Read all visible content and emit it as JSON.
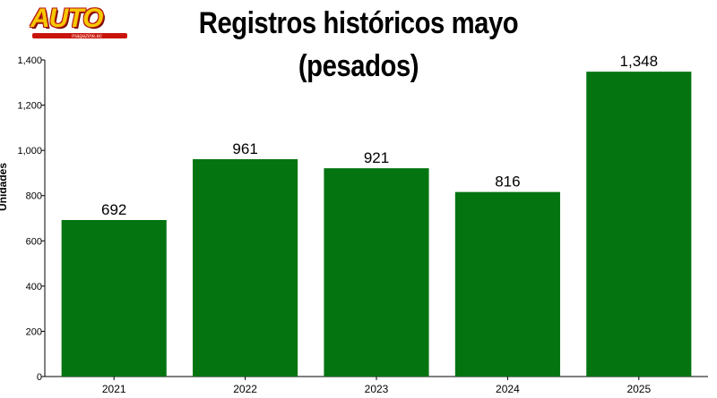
{
  "logo": {
    "word": "AUTO",
    "sub": "magazine.ec"
  },
  "chart_data": {
    "type": "bar",
    "title": "Registros históricos mayo (pesados)",
    "xlabel": "",
    "ylabel": "Unidades",
    "categories": [
      "2021",
      "2022",
      "2023",
      "2024",
      "2025"
    ],
    "values": [
      692,
      961,
      921,
      816,
      1348
    ],
    "value_labels": [
      "692",
      "961",
      "921",
      "816",
      "1,348"
    ],
    "ylim": [
      0,
      1400
    ],
    "yticks": [
      0,
      200,
      400,
      600,
      800,
      1000,
      1200,
      1400
    ],
    "ytick_labels": [
      "0",
      "200",
      "400",
      "600",
      "800",
      "1,000",
      "1,200",
      "1,400"
    ],
    "bar_color": "#037410",
    "grid": false,
    "legend": "none"
  }
}
